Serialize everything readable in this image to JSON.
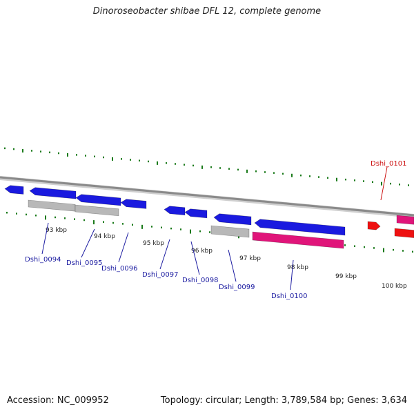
{
  "title": "Dinoroseobacter shibae DFL 12, complete genome",
  "footer": {
    "accession": "Accession: NC_009952",
    "summary": "Topology: circular; Length: 3,789,584 bp; Genes: 3,634"
  },
  "colors": {
    "backbone": "#8a8a8a",
    "tick": "#1a7a1a",
    "cds_blue": "#1a1adf",
    "rna_gray": "#b8b8b8",
    "gene_pink": "#e0157a",
    "gene_red": "#ee1111",
    "label_blue": "#1a1aa0",
    "label_red": "#cc1111"
  },
  "ticks": [
    "93 kbp",
    "94 kbp",
    "95 kbp",
    "96 kbp",
    "97 kbp",
    "98 kbp",
    "99 kbp",
    "100 kbp"
  ],
  "gene_labels": [
    {
      "text": "Dshi_0094",
      "color": "label_blue"
    },
    {
      "text": "Dshi_0095",
      "color": "label_blue"
    },
    {
      "text": "Dshi_0096",
      "color": "label_blue"
    },
    {
      "text": "Dshi_0097",
      "color": "label_blue"
    },
    {
      "text": "Dshi_0098",
      "color": "label_blue"
    },
    {
      "text": "Dshi_0099",
      "color": "label_blue"
    },
    {
      "text": "Dshi_0100",
      "color": "label_blue"
    },
    {
      "text": "Dshi_0101",
      "color": "label_red"
    }
  ]
}
